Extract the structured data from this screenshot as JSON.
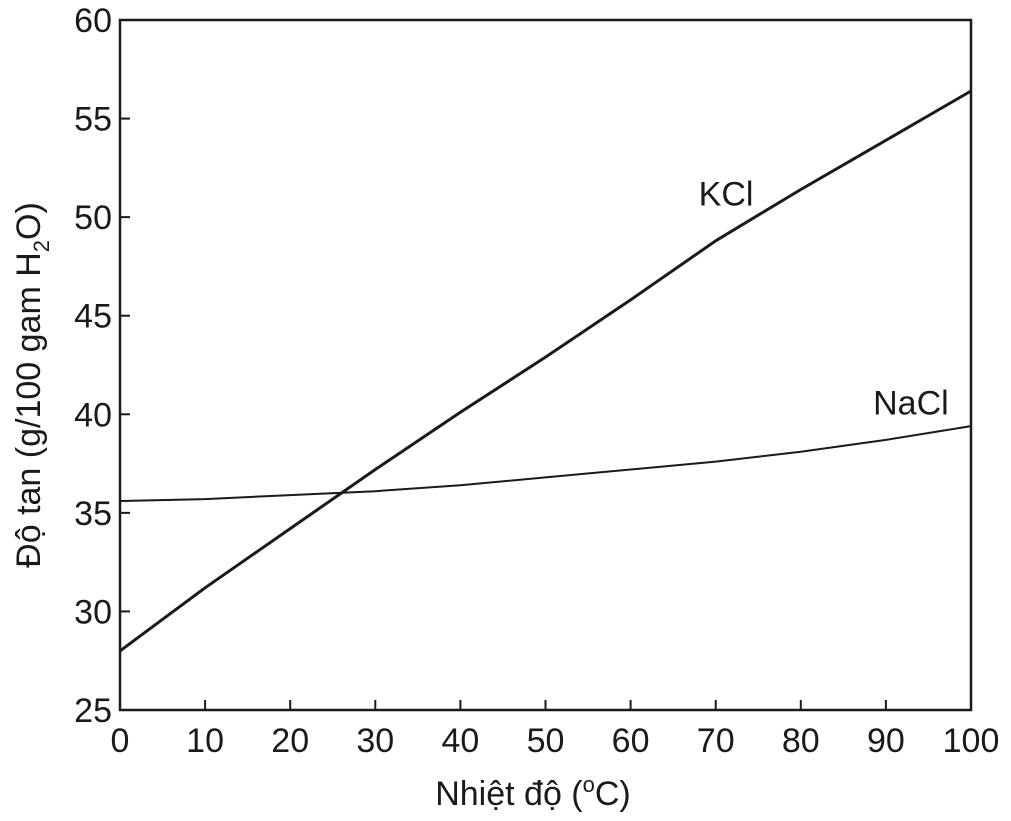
{
  "chart_data": {
    "type": "line",
    "xlabel_main": "Nhiệt độ (",
    "xlabel_sup": "o",
    "xlabel_end": "C)",
    "ylabel_main": "Độ tan (g/100 gam H",
    "ylabel_sub": "2",
    "ylabel_end": "O)",
    "xlim": [
      0,
      100
    ],
    "ylim": [
      25,
      60
    ],
    "x_ticks": [
      0,
      10,
      20,
      30,
      40,
      50,
      60,
      70,
      80,
      90,
      100
    ],
    "y_ticks": [
      25,
      30,
      35,
      40,
      45,
      50,
      55,
      60
    ],
    "grid": false,
    "series": [
      {
        "name": "KCl",
        "color": "#1a1a1a",
        "x": [
          0,
          10,
          20,
          30,
          40,
          50,
          60,
          70,
          80,
          90,
          100
        ],
        "y": [
          28.0,
          31.2,
          34.2,
          37.2,
          40.1,
          42.9,
          45.8,
          48.8,
          51.4,
          53.9,
          56.4
        ]
      },
      {
        "name": "NaCl",
        "color": "#1a1a1a",
        "x": [
          0,
          10,
          20,
          30,
          40,
          50,
          60,
          70,
          80,
          90,
          100
        ],
        "y": [
          35.6,
          35.7,
          35.9,
          36.1,
          36.4,
          36.8,
          37.2,
          37.6,
          38.1,
          38.7,
          39.4
        ]
      }
    ]
  }
}
